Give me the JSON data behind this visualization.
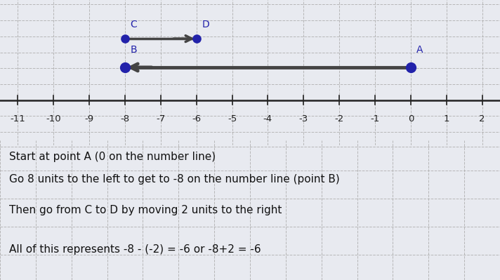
{
  "xlim": [
    -11.5,
    2.5
  ],
  "tick_positions": [
    -11,
    -10,
    -9,
    -8,
    -7,
    -6,
    -5,
    -4,
    -3,
    -2,
    -1,
    0,
    1,
    2
  ],
  "grid_color": "#aaaaaa",
  "bg_color": "#e8eaf0",
  "axis_color": "#222222",
  "point_color": "#2222aa",
  "arrow_color": "#444444",
  "point_A": 0,
  "point_B": -8,
  "point_C": -8,
  "point_D": -6,
  "text_line1": "Start at point A (0 on the number line)",
  "text_line2": "Go 8 units to the left to get to -8 on the number line (point B)",
  "text_line3": "Then go from C to D by moving 2 units to the right",
  "text_line4": "All of this represents -8 - (-2) = -6 or -8+2 = -6",
  "font_size_tick": 9.5,
  "font_size_text": 11,
  "font_size_label": 10,
  "point_size": 55
}
